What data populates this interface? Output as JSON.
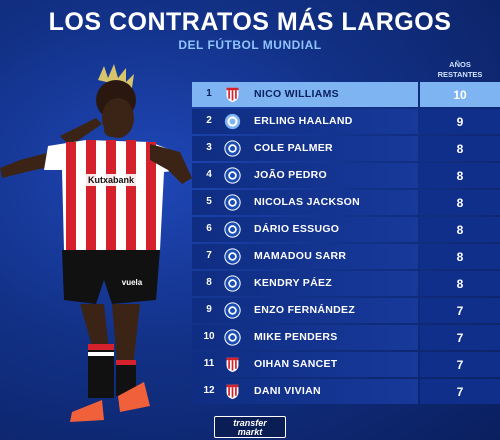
{
  "header": {
    "title": "LOS CONTRATOS MÁS LARGOS",
    "subtitle": "DEL FÚTBOL MUNDIAL",
    "column_label_line1": "AÑOS",
    "column_label_line2": "RESTANTES"
  },
  "colors": {
    "athletic": "#d5212b",
    "chelsea": "#1a4db3",
    "city": "#7eb4f2",
    "highlight": "#7eb4f2"
  },
  "rows": [
    {
      "pos": "1",
      "name": "NICO WILLIAMS",
      "years": "10",
      "club": "athletic-crest"
    },
    {
      "pos": "2",
      "name": "ERLING HAALAND",
      "years": "9",
      "club": "man-city-crest"
    },
    {
      "pos": "3",
      "name": "COLE PALMER",
      "years": "8",
      "club": "chelsea-crest"
    },
    {
      "pos": "4",
      "name": "JOÃO PEDRO",
      "years": "8",
      "club": "chelsea-crest"
    },
    {
      "pos": "5",
      "name": "NICOLAS JACKSON",
      "years": "8",
      "club": "chelsea-crest"
    },
    {
      "pos": "6",
      "name": "DÁRIO ESSUGO",
      "years": "8",
      "club": "chelsea-crest"
    },
    {
      "pos": "7",
      "name": "MAMADOU SARR",
      "years": "8",
      "club": "chelsea-crest"
    },
    {
      "pos": "8",
      "name": "KENDRY PÁEZ",
      "years": "8",
      "club": "chelsea-crest"
    },
    {
      "pos": "9",
      "name": "ENZO FERNÁNDEZ",
      "years": "7",
      "club": "chelsea-crest"
    },
    {
      "pos": "10",
      "name": "MIKE PENDERS",
      "years": "7",
      "club": "chelsea-crest"
    },
    {
      "pos": "11",
      "name": "OIHAN SANCET",
      "years": "7",
      "club": "athletic-crest"
    },
    {
      "pos": "12",
      "name": "DANI VIVIAN",
      "years": "7",
      "club": "athletic-crest"
    }
  ],
  "player": {
    "sponsor": "Kutxabank",
    "shorts_sponsor": "vuela"
  },
  "logo": {
    "line1": "transfer",
    "line2": "markt"
  }
}
